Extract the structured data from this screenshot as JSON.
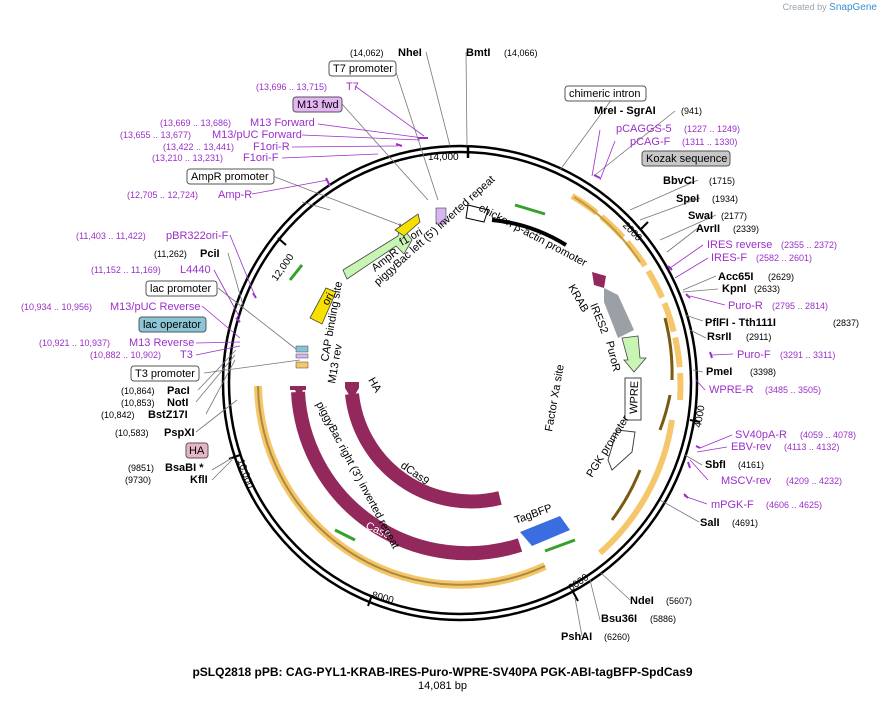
{
  "credit": {
    "prefix": "Created by",
    "brand": "SnapGene"
  },
  "title": "pSLQ2818 pPB: CAG-PYL1-KRAB-IRES-Puro-WPRE-SV40PA PGK-ABI-tagBFP-SpdCas9",
  "subtitle": "14,081 bp",
  "colors": {
    "backbone": "#000000",
    "primer": "#9b2fc9",
    "feature_orange": "#f5c76a",
    "cas9": "#92285c",
    "tagbfp": "#3a6ee0",
    "cmv_green": "#c8f5b4",
    "gray": "#9aa0a6",
    "yellow": "#f7e000",
    "site_text": "#000000"
  },
  "tick_labels": [
    "14,000",
    "2000",
    "4000",
    "6000",
    "8000",
    "10,000",
    "12,000"
  ],
  "sites": [
    {
      "name": "NheI",
      "pos": "(14,062)",
      "label": "NheI"
    },
    {
      "name": "BmtI",
      "pos": "(14,066)",
      "label": "BmtI"
    },
    {
      "name": "MreI - SgrAI",
      "pos": "(941)",
      "label": "MreI  - SgrAI"
    },
    {
      "name": "BbvCI",
      "pos": "(1715)",
      "label": "BbvCI"
    },
    {
      "name": "SpeI",
      "pos": "(1934)",
      "label": "SpeI"
    },
    {
      "name": "SwaI",
      "pos": "(2177)",
      "label": "SwaI"
    },
    {
      "name": "AvrII",
      "pos": "(2339)",
      "label": "AvrII"
    },
    {
      "name": "Acc65I",
      "pos": "(2629)",
      "label": "Acc65I"
    },
    {
      "name": "KpnI",
      "pos": "(2633)",
      "label": "KpnI"
    },
    {
      "name": "PflFI - Tth111I",
      "pos": "(2837)",
      "label": "PflFI  - Tth111I"
    },
    {
      "name": "RsrII",
      "pos": "(2911)",
      "label": "RsrII"
    },
    {
      "name": "PmeI",
      "pos": "(3398)",
      "label": "PmeI"
    },
    {
      "name": "SbfI",
      "pos": "(4161)",
      "label": "SbfI"
    },
    {
      "name": "SalI",
      "pos": "(4691)",
      "label": "SalI"
    },
    {
      "name": "NdeI",
      "pos": "(5607)",
      "label": "NdeI"
    },
    {
      "name": "Bsu36I",
      "pos": "(5886)",
      "label": "Bsu36I"
    },
    {
      "name": "PshAI",
      "pos": "(6260)",
      "label": "PshAI"
    },
    {
      "name": "KflI",
      "pos": "(9730)",
      "label": "KflI"
    },
    {
      "name": "BsaBI",
      "pos": "(9851)",
      "label": "BsaBI *"
    },
    {
      "name": "PspXI",
      "pos": "(10,583)",
      "label": "PspXI"
    },
    {
      "name": "BstZ17I",
      "pos": "(10,842)",
      "label": "BstZ17I"
    },
    {
      "name": "NotI",
      "pos": "(10,853)",
      "label": "NotI"
    },
    {
      "name": "PacI",
      "pos": "(10,864)",
      "label": "PacI"
    },
    {
      "name": "PciI",
      "pos": "(11,262)",
      "label": "PciI"
    }
  ],
  "primers": [
    {
      "label": "T7",
      "pos": "(13,696 .. 13,715)"
    },
    {
      "label": "M13 Forward",
      "pos": "(13,669 .. 13,686)"
    },
    {
      "label": "M13/pUC Forward",
      "pos": "(13,655 .. 13,677)"
    },
    {
      "label": "F1ori-R",
      "pos": "(13,422 .. 13,441)"
    },
    {
      "label": "F1ori-F",
      "pos": "(13,210 .. 13,231)"
    },
    {
      "label": "Amp-R",
      "pos": "(12,705 .. 12,724)"
    },
    {
      "label": "pBR322ori-F",
      "pos": "(11,403 .. 11,422)"
    },
    {
      "label": "L4440",
      "pos": "(11,152 .. 11,169)"
    },
    {
      "label": "M13/pUC Reverse",
      "pos": "(10,934 .. 10,956)"
    },
    {
      "label": "M13 Reverse",
      "pos": "(10,921 .. 10,937)"
    },
    {
      "label": "T3",
      "pos": "(10,882 .. 10,902)"
    },
    {
      "label": "pCAGGS-5",
      "pos": "(1227 .. 1249)"
    },
    {
      "label": "pCAG-F",
      "pos": "(1311 .. 1330)"
    },
    {
      "label": "IRES reverse",
      "pos": "(2355 .. 2372)"
    },
    {
      "label": "IRES-F",
      "pos": "(2582 .. 2601)"
    },
    {
      "label": "Puro-R",
      "pos": "(2795 .. 2814)"
    },
    {
      "label": "Puro-F",
      "pos": "(3291 .. 3311)"
    },
    {
      "label": "WPRE-R",
      "pos": "(3485 .. 3505)"
    },
    {
      "label": "SV40pA-R",
      "pos": "(4059 .. 4078)"
    },
    {
      "label": "EBV-rev",
      "pos": "(4113 .. 4132)"
    },
    {
      "label": "MSCV-rev",
      "pos": "(4209 .. 4232)"
    },
    {
      "label": "mPGK-F",
      "pos": "(4606 .. 4625)"
    }
  ],
  "boxed_labels": {
    "t7_promoter": "T7 promoter",
    "m13_fwd": "M13 fwd",
    "ampr_promoter": "AmpR promoter",
    "lac_promoter": "lac promoter",
    "lac_operator": "lac operator",
    "t3_promoter": "T3 promoter",
    "ha": "HA",
    "chimeric_intron": "chimeric intron",
    "kozak": "Kozak sequence"
  },
  "features": {
    "cba": "chicken β-actin promoter",
    "krab": "KRAB",
    "ires2": "IRES2",
    "puror": "PuroR",
    "wpre": "WPRE",
    "factor_xa": "Factor Xa site",
    "pgk": "PGK promoter",
    "tagbfp": "TagBFP",
    "cas9": "Cas9",
    "dcas9": "dCas9",
    "ha_inner": "HA",
    "pb_right": "piggyBac right (3') inverted repeat",
    "pb_left": "piggyBac left (5') inverted repeat",
    "cap": "CAP binding site",
    "m13rev": "M13 rev",
    "ori": "ori",
    "ampr": "AmpR",
    "f1ori": "f1 ori"
  }
}
